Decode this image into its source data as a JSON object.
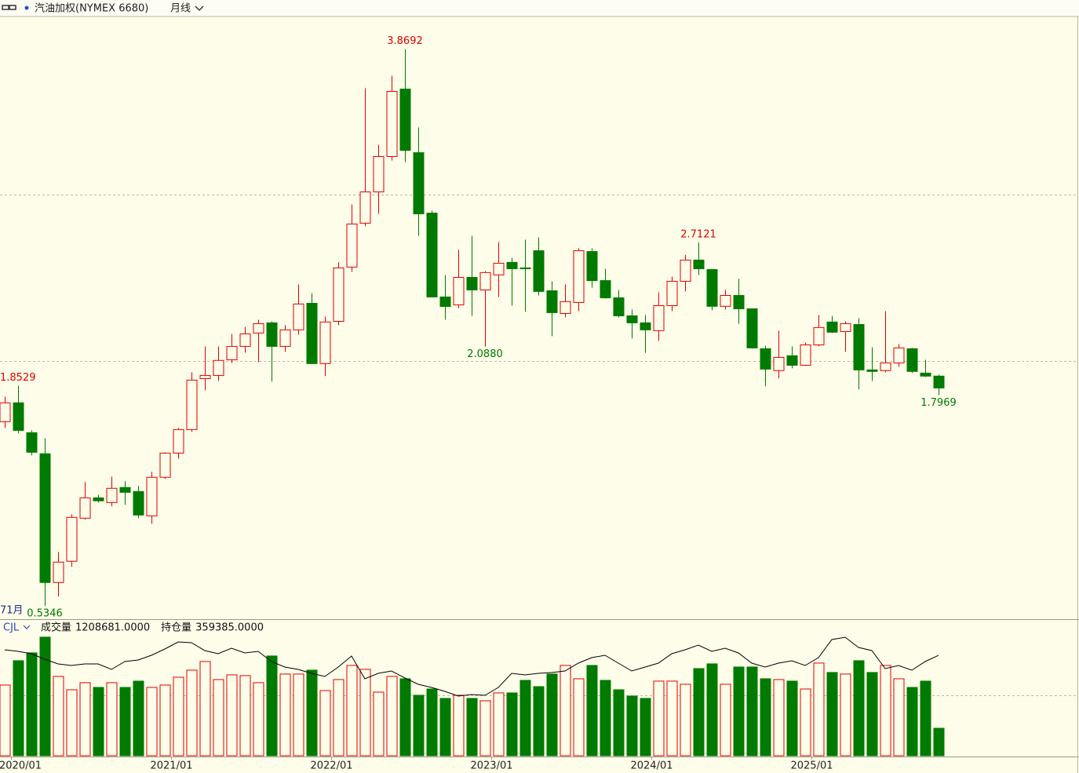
{
  "header": {
    "title": "汽油加权(NYMEX 6680)",
    "period": "月线"
  },
  "chart_data": [
    {
      "type": "candlestick",
      "categories": [
        "2019/12",
        "2020/01",
        "2020/02",
        "2020/03",
        "2020/04",
        "2020/05",
        "2020/06",
        "2020/07",
        "2020/08",
        "2020/09",
        "2020/10",
        "2020/11",
        "2020/12",
        "2021/01",
        "2021/02",
        "2021/03",
        "2021/04",
        "2021/05",
        "2021/06",
        "2021/07",
        "2021/08",
        "2021/09",
        "2021/10",
        "2021/11",
        "2021/12",
        "2022/01",
        "2022/02",
        "2022/03",
        "2022/04",
        "2022/05",
        "2022/06",
        "2022/07",
        "2022/08",
        "2022/09",
        "2022/10",
        "2022/11",
        "2022/12",
        "2023/01",
        "2023/02",
        "2023/03",
        "2023/04",
        "2023/05",
        "2023/06",
        "2023/07",
        "2023/08",
        "2023/09",
        "2023/10",
        "2023/11",
        "2023/12",
        "2024/01",
        "2024/02",
        "2024/03",
        "2024/04",
        "2024/05",
        "2024/06",
        "2024/07",
        "2024/08",
        "2024/09",
        "2024/10",
        "2024/11",
        "2024/12",
        "2025/01",
        "2025/02",
        "2025/03",
        "2025/04",
        "2025/05",
        "2025/06",
        "2025/07",
        "2025/08",
        "2025/09",
        "2025/10"
      ],
      "xticks": [
        "2020/01",
        "2021/01",
        "2022/01",
        "2023/01",
        "2024/01",
        "2025/01"
      ],
      "open": [
        1.638,
        1.751,
        1.572,
        1.446,
        0.675,
        0.802,
        1.06,
        1.182,
        1.154,
        1.244,
        1.22,
        1.074,
        1.305,
        1.45,
        1.591,
        1.896,
        1.915,
        2.009,
        2.089,
        2.169,
        2.23,
        2.089,
        2.188,
        2.347,
        1.986,
        2.239,
        2.564,
        2.827,
        3.014,
        3.226,
        3.63,
        3.249,
        2.887,
        2.385,
        2.338,
        2.502,
        2.427,
        2.517,
        2.592,
        2.559,
        2.662,
        2.422,
        2.286,
        2.352,
        2.657,
        2.483,
        2.38,
        2.272,
        2.23,
        2.183,
        2.333,
        2.479,
        2.606,
        2.549,
        2.329,
        2.394,
        2.314,
        2.075,
        1.944,
        2.033,
        1.976,
        2.098,
        2.235,
        2.178,
        2.22,
        1.948,
        1.944,
        1.99,
        2.075,
        1.929,
        1.911
      ],
      "high": [
        1.788,
        1.8529,
        1.586,
        1.539,
        0.858,
        1.084,
        1.276,
        1.201,
        1.309,
        1.281,
        1.253,
        1.338,
        1.455,
        1.6,
        1.934,
        2.089,
        2.089,
        2.164,
        2.206,
        2.249,
        2.239,
        2.216,
        2.46,
        2.408,
        2.267,
        2.592,
        2.939,
        3.634,
        3.296,
        3.71,
        3.8692,
        3.4,
        2.902,
        2.516,
        2.667,
        2.751,
        2.54,
        2.714,
        2.62,
        2.728,
        2.742,
        2.479,
        2.46,
        2.676,
        2.676,
        2.554,
        2.427,
        2.31,
        2.277,
        2.413,
        2.507,
        2.638,
        2.7121,
        2.549,
        2.427,
        2.493,
        2.314,
        2.094,
        2.183,
        2.089,
        2.112,
        2.277,
        2.272,
        2.239,
        2.258,
        2.084,
        2.3,
        2.103,
        2.08,
        2.009,
        1.92
      ],
      "low": [
        1.6,
        1.568,
        1.436,
        0.5346,
        0.591,
        0.769,
        1.051,
        1.154,
        1.131,
        1.14,
        1.06,
        1.027,
        1.295,
        1.417,
        1.577,
        1.826,
        1.882,
        1.99,
        2.051,
        1.995,
        1.878,
        2.056,
        2.159,
        1.982,
        1.911,
        2.216,
        2.535,
        2.808,
        2.883,
        3.202,
        3.193,
        2.751,
        2.385,
        2.249,
        2.319,
        2.272,
        2.088,
        2.385,
        2.333,
        2.296,
        2.394,
        2.15,
        2.263,
        2.3,
        2.441,
        2.375,
        2.263,
        2.136,
        2.051,
        2.122,
        2.3,
        2.418,
        2.516,
        2.305,
        2.31,
        2.225,
        2.075,
        1.85,
        1.897,
        1.958,
        1.972,
        2.089,
        2.169,
        2.056,
        1.831,
        1.882,
        1.934,
        1.967,
        1.929,
        1.906,
        1.7969
      ],
      "close": [
        1.751,
        1.586,
        1.455,
        0.675,
        0.797,
        1.065,
        1.182,
        1.164,
        1.239,
        1.215,
        1.079,
        1.305,
        1.45,
        1.591,
        1.887,
        1.915,
        2.005,
        2.089,
        2.164,
        2.225,
        2.089,
        2.188,
        2.343,
        1.986,
        2.235,
        2.559,
        2.822,
        3.014,
        3.226,
        3.616,
        3.263,
        2.883,
        2.385,
        2.328,
        2.502,
        2.427,
        2.531,
        2.587,
        2.554,
        2.554,
        2.418,
        2.291,
        2.357,
        2.662,
        2.483,
        2.38,
        2.272,
        2.23,
        2.188,
        2.333,
        2.479,
        2.606,
        2.554,
        2.329,
        2.394,
        2.314,
        2.08,
        1.953,
        2.023,
        1.976,
        2.098,
        2.202,
        2.174,
        2.225,
        1.948,
        1.939,
        1.99,
        2.08,
        1.939,
        1.911,
        1.84
      ],
      "up_color": "#e00000",
      "down_color": "#007a00",
      "ylim": [
        0.46,
        4.06
      ],
      "yticks": [
        2,
        3
      ],
      "grid": true,
      "annotations": [
        {
          "category": "2022/06",
          "kind": "high",
          "label": "3.8692"
        },
        {
          "category": "2024/04",
          "kind": "high",
          "label": "2.7121"
        },
        {
          "category": "2020/01",
          "kind": "high",
          "label": "1.8529"
        },
        {
          "category": "2022/12",
          "kind": "low",
          "label": "2.0880"
        },
        {
          "category": "2025/10",
          "kind": "low",
          "label": "1.7969"
        },
        {
          "category": "2020/03",
          "kind": "low",
          "label": "0.5346"
        }
      ],
      "count_label": "71月"
    },
    {
      "type": "volume",
      "indicator": "CJL",
      "series": [
        {
          "name": "成交量",
          "value_label": "1208681.0000",
          "values": [
            3108000,
            4179000,
            4524000,
            5215000,
            3488000,
            2901000,
            3212000,
            3004000,
            3212000,
            3004000,
            3281000,
            3004000,
            3108000,
            3453000,
            3764000,
            4144000,
            3350000,
            3557000,
            3522000,
            3212000,
            4386000,
            3592000,
            3592000,
            3764000,
            2866000,
            3350000,
            3971000,
            3799000,
            2797000,
            3488000,
            3384000,
            2659000,
            2935000,
            2521000,
            2659000,
            2521000,
            2417000,
            2763000,
            2763000,
            3315000,
            3039000,
            3592000,
            3971000,
            3384000,
            3971000,
            3315000,
            2901000,
            2625000,
            2521000,
            3281000,
            3281000,
            3143000,
            3833000,
            4040000,
            3143000,
            3902000,
            3902000,
            3384000,
            3350000,
            3281000,
            2935000,
            4075000,
            3661000,
            3592000,
            4179000,
            3661000,
            3971000,
            3384000,
            3004000,
            3281000,
            1208681
          ]
        },
        {
          "name": "持仓量",
          "value_label": "359385.0000",
          "axis": "y2",
          "color": "#000000",
          "values": [
            379400,
            373700,
            365300,
            345600,
            328800,
            323200,
            328800,
            328800,
            309100,
            337200,
            342800,
            359700,
            382200,
            407500,
            404600,
            376500,
            365300,
            385000,
            368100,
            373700,
            337200,
            317500,
            309100,
            295100,
            283800,
            317500,
            356900,
            275400,
            295100,
            303500,
            278200,
            255700,
            244500,
            230400,
            213600,
            219200,
            216400,
            244500,
            295100,
            289400,
            295100,
            297900,
            303500,
            331600,
            351300,
            359700,
            331600,
            303500,
            317500,
            331600,
            365300,
            379400,
            396200,
            373700,
            385000,
            368100,
            331600,
            317500,
            331600,
            340000,
            323200,
            351300,
            415900,
            424300,
            387800,
            376500,
            311900,
            323200,
            306300,
            337200,
            359385
          ]
        }
      ],
      "ylim": [
        0,
        5280000
      ],
      "yticks": [
        2659000
      ],
      "grid": true,
      "y2lim": [
        0,
        430000
      ]
    }
  ]
}
